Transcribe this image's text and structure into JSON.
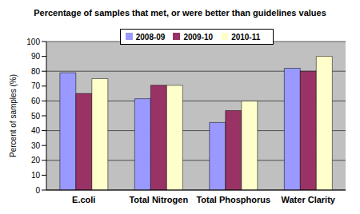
{
  "chart_data": {
    "type": "bar",
    "title": "Percentage of samples that met, or were better than guidelines values",
    "y_label": "Percent of samples (%)",
    "categories": [
      "E.coli",
      "Total Nitrogen",
      "Total Phosphorus",
      "Water Clarity"
    ],
    "series": [
      {
        "name": "2008-09",
        "color": "#9999ff",
        "values": [
          79,
          61.5,
          45.5,
          82
        ]
      },
      {
        "name": "2009-10",
        "color": "#993366",
        "values": [
          65,
          70.5,
          53.5,
          80
        ]
      },
      {
        "name": "2010-11",
        "color": "#ffffcc",
        "values": [
          75,
          70.5,
          60,
          90
        ]
      }
    ],
    "ylim": [
      0,
      100
    ],
    "yticks": [
      0,
      10,
      20,
      30,
      40,
      50,
      60,
      70,
      80,
      90,
      100
    ],
    "grid": true,
    "legend": "top"
  }
}
